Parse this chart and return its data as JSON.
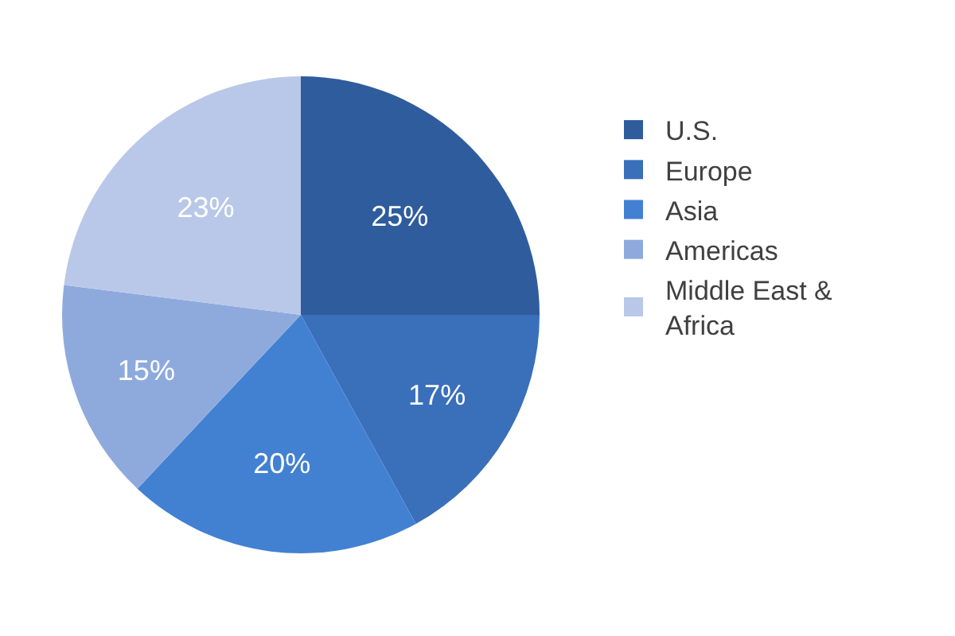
{
  "chart_data": {
    "type": "pie",
    "categories": [
      "U.S.",
      "Europe",
      "Asia",
      "Americas",
      "Middle East & Africa"
    ],
    "values": [
      25,
      17,
      20,
      15,
      23
    ],
    "colors": [
      "#2f5c9c",
      "#3a6fba",
      "#4281d2",
      "#8eaadd",
      "#b9c8e8"
    ],
    "value_labels": [
      "25%",
      "17%",
      "20%",
      "15%",
      "23%"
    ],
    "legend": "right"
  }
}
